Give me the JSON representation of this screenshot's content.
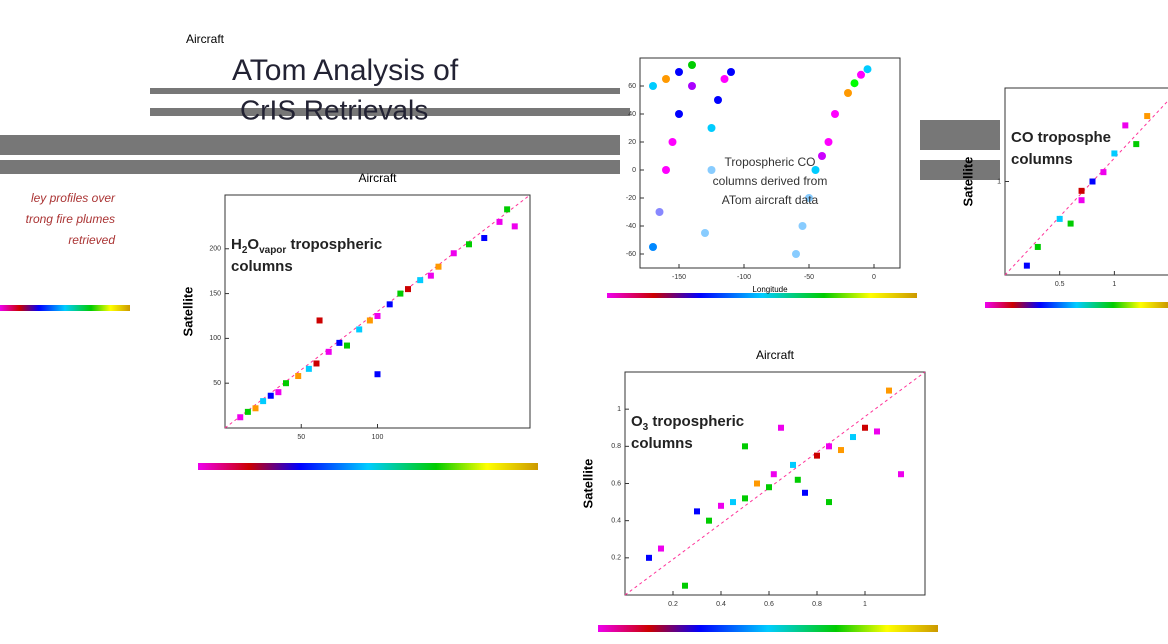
{
  "slide": {
    "title": [
      "ATom Analysis of",
      "CrIS Retrievals"
    ],
    "top_label": "Aircraft",
    "left_fragment": [
      "ley profiles over",
      "trong fire plumes",
      "retrieved"
    ]
  },
  "chart_data": [
    {
      "type": "scatter",
      "title": [
        "H",
        "2",
        "O",
        "vapor",
        " tropospheric",
        "columns"
      ],
      "top_label": "Aircraft",
      "ylabel": "Satellite",
      "x": [
        10,
        15,
        20,
        25,
        30,
        35,
        40,
        48,
        55,
        60,
        68,
        75,
        80,
        88,
        95,
        100,
        108,
        115,
        120,
        128,
        135,
        140,
        150,
        160,
        170,
        180,
        185,
        190,
        100,
        62
      ],
      "values": [
        12,
        18,
        22,
        30,
        36,
        40,
        50,
        58,
        66,
        72,
        85,
        95,
        92,
        110,
        120,
        125,
        138,
        150,
        155,
        165,
        170,
        180,
        195,
        205,
        212,
        230,
        244,
        225,
        60,
        120
      ],
      "colors": [
        "#e0e",
        "#0c0",
        "#f90",
        "#0cf",
        "#00f",
        "#e0e",
        "#0c0",
        "#f90",
        "#0cf",
        "#c00",
        "#e0e",
        "#00f",
        "#0c0",
        "#0cf",
        "#f90",
        "#e0e",
        "#00f",
        "#0c0",
        "#c00",
        "#0cf",
        "#e0e",
        "#f90",
        "#e0e",
        "#0c0",
        "#00f",
        "#e0e",
        "#0c0",
        "#e0e",
        "#00f",
        "#c00"
      ],
      "xlim": [
        0,
        200
      ],
      "ylim": [
        0,
        260
      ],
      "xticks": [
        50,
        100
      ],
      "yticks": [
        50,
        100,
        150,
        200
      ]
    },
    {
      "type": "scatter",
      "title": [
        "O",
        "3",
        " tropospheric",
        "columns"
      ],
      "top_label": "Aircraft",
      "ylabel": "Satellite",
      "x": [
        0.1,
        0.15,
        0.3,
        0.35,
        0.4,
        0.45,
        0.5,
        0.55,
        0.6,
        0.62,
        0.7,
        0.72,
        0.8,
        0.85,
        0.9,
        0.95,
        1.0,
        1.05,
        1.1,
        0.5,
        0.75,
        0.65,
        0.85,
        1.15,
        0.25
      ],
      "values": [
        0.2,
        0.25,
        0.45,
        0.4,
        0.48,
        0.5,
        0.52,
        0.6,
        0.58,
        0.65,
        0.7,
        0.62,
        0.75,
        0.8,
        0.78,
        0.85,
        0.9,
        0.88,
        1.1,
        0.8,
        0.55,
        0.9,
        0.5,
        0.65,
        0.05
      ],
      "colors": [
        "#00f",
        "#e0e",
        "#00f",
        "#0c0",
        "#e0e",
        "#0cf",
        "#0c0",
        "#f90",
        "#0c0",
        "#e0e",
        "#0cf",
        "#0c0",
        "#c00",
        "#e0e",
        "#f90",
        "#0cf",
        "#c00",
        "#e0e",
        "#f90",
        "#0c0",
        "#00f",
        "#e0e",
        "#0c0",
        "#e0e",
        "#0c0"
      ],
      "xlim": [
        0,
        1.25
      ],
      "ylim": [
        0,
        1.2
      ],
      "xticks": [
        0.2,
        0.4,
        0.6,
        0.8,
        1.0
      ],
      "yticks": [
        0.2,
        0.4,
        0.6,
        0.8,
        1.0
      ]
    },
    {
      "type": "map",
      "annotation": [
        "Tropospheric CO",
        "columns derived from",
        "ATom aircraft data"
      ],
      "xlabel": "Longitude",
      "x": [
        -170,
        -165,
        -160,
        -155,
        -150,
        -140,
        -130,
        -125,
        -125,
        -120,
        -115,
        -110,
        -60,
        -55,
        -50,
        -45,
        -40,
        -35,
        -30,
        -20,
        -15,
        -10,
        -5,
        -170,
        -160,
        -150,
        -140
      ],
      "values": [
        -55,
        -30,
        0,
        20,
        40,
        60,
        -45,
        0,
        30,
        50,
        65,
        70,
        -60,
        -40,
        -20,
        0,
        10,
        20,
        40,
        55,
        62,
        68,
        72,
        60,
        65,
        70,
        75
      ],
      "colors": [
        "#08f",
        "#88f",
        "#f0f",
        "#f0f",
        "#00f",
        "#a0f",
        "#8cf",
        "#8cf",
        "#0cf",
        "#00f",
        "#f0f",
        "#00f",
        "#8cf",
        "#8cf",
        "#8cf",
        "#0cf",
        "#c0f",
        "#f0f",
        "#f0f",
        "#f90",
        "#0f0",
        "#f0f",
        "#0cf",
        "#0cf",
        "#f90",
        "#00f",
        "#0c0"
      ],
      "xlim": [
        -180,
        20
      ],
      "ylim": [
        -70,
        80
      ],
      "xticks": [
        -150,
        -100,
        -50,
        0
      ],
      "yticks": [
        60,
        40,
        20,
        0,
        -20,
        -40,
        -60
      ]
    },
    {
      "type": "scatter",
      "title": [
        "CO troposphe",
        "columns"
      ],
      "ylabel": "Satellite",
      "x": [
        0.2,
        0.3,
        0.5,
        0.6,
        0.7,
        0.8,
        0.9,
        1.0,
        1.1,
        1.2,
        1.3,
        0.7
      ],
      "values": [
        0.1,
        0.3,
        0.6,
        0.55,
        0.8,
        1.0,
        1.1,
        1.3,
        1.6,
        1.4,
        1.7,
        0.9
      ],
      "colors": [
        "#00f",
        "#0c0",
        "#0cf",
        "#0c0",
        "#e0e",
        "#00f",
        "#e0e",
        "#0cf",
        "#e0e",
        "#0c0",
        "#f90",
        "#c00"
      ],
      "xlim": [
        0,
        1.6
      ],
      "ylim": [
        0,
        2
      ],
      "xticks": [
        0.5,
        1
      ],
      "yticks": [
        1
      ]
    }
  ]
}
